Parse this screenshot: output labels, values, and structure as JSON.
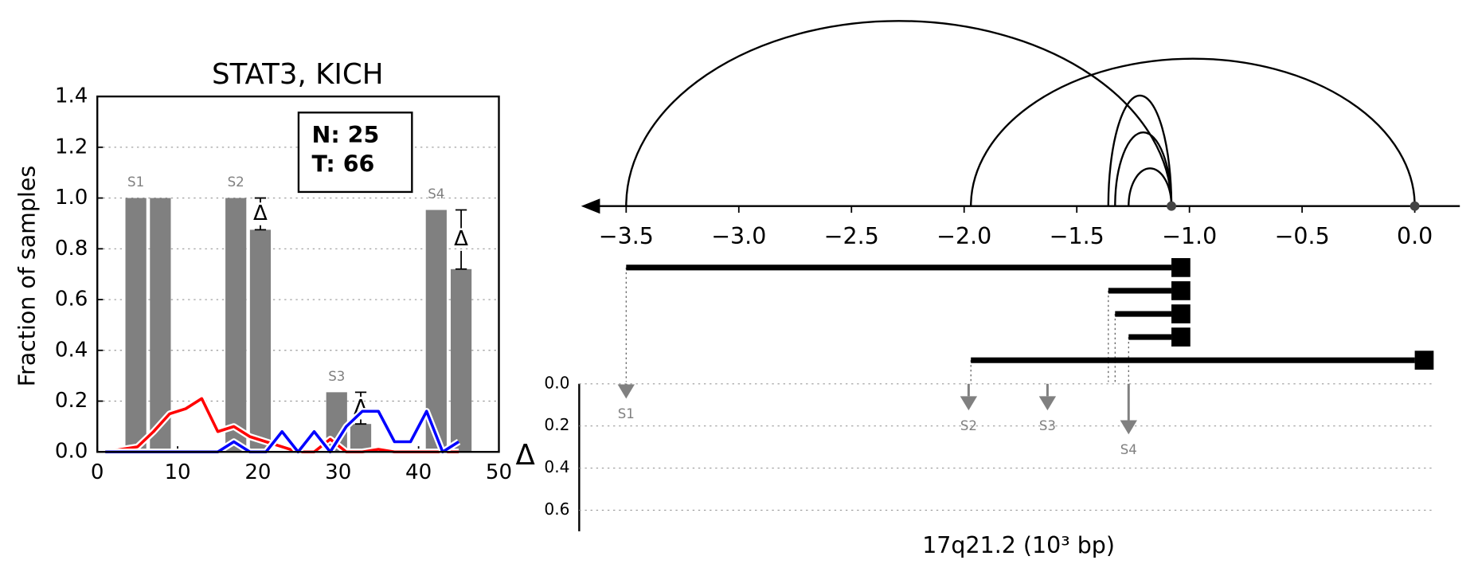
{
  "chart_data": [
    {
      "type": "bar",
      "title": "STAT3, KICH",
      "ylabel": "Fraction of samples",
      "xlim": [
        0,
        50
      ],
      "ylim": [
        0,
        1.4
      ],
      "xticks": [
        0,
        10,
        20,
        30,
        40,
        50
      ],
      "yticks": [
        {
          "value": 0,
          "label": "0.0"
        },
        {
          "value": 0.2,
          "label": "0.2"
        },
        {
          "value": 0.4,
          "label": "0.4"
        },
        {
          "value": 0.6,
          "label": "0.6"
        },
        {
          "value": 0.8,
          "label": "0.8"
        },
        {
          "value": 1,
          "label": "1.0"
        },
        {
          "value": 1.2,
          "label": "1.2"
        },
        {
          "value": 1.4,
          "label": "1.4"
        }
      ],
      "grid": true,
      "bar_color": "#808080",
      "bar_width": 2.6,
      "groups": [
        {
          "name": "S1",
          "x": [
            4.8,
            7.85
          ],
          "values": [
            1,
            1
          ]
        },
        {
          "name": "S2",
          "x": [
            17.25,
            20.3
          ],
          "values": [
            1,
            0.875
          ]
        },
        {
          "name": "S3",
          "x": [
            29.8,
            32.8
          ],
          "values": [
            0.235,
            0.11
          ]
        },
        {
          "name": "S4",
          "x": [
            42.2,
            45.3
          ],
          "values": [
            0.953,
            0.72
          ]
        }
      ],
      "delta_label": "Δ",
      "x": [
        1,
        3,
        5,
        7,
        9,
        11,
        13,
        15,
        17,
        19,
        21,
        23,
        25,
        27,
        29,
        31,
        33,
        35,
        37,
        39,
        41,
        43,
        45
      ],
      "series": [
        {
          "color": "#ff0000",
          "values": [
            0,
            0.01,
            0.02,
            0.08,
            0.15,
            0.17,
            0.21,
            0.08,
            0.1,
            0.06,
            0.04,
            0.02,
            0,
            0,
            0.05,
            0,
            0,
            0.01,
            0,
            0,
            0,
            0,
            0
          ]
        },
        {
          "color": "#0000ff",
          "values": [
            0,
            0,
            0,
            0,
            0,
            0,
            0,
            0,
            0.04,
            0,
            0,
            0.08,
            0,
            0.08,
            0,
            0.1,
            0.16,
            0.16,
            0.04,
            0.04,
            0.16,
            0,
            0.04
          ]
        }
      ],
      "legend": [
        "N: 25",
        "T: 66"
      ]
    },
    {
      "type": "arc",
      "xlabel": "17q21.2 (10³ bp)",
      "xlim": [
        -3.7,
        0.2
      ],
      "xticks": [
        {
          "value": -3.5,
          "label": "−3.5"
        },
        {
          "value": -3,
          "label": "−3.0"
        },
        {
          "value": -2.5,
          "label": "−2.5"
        },
        {
          "value": -2,
          "label": "−2.0"
        },
        {
          "value": -1.5,
          "label": "−1.5"
        },
        {
          "value": -1,
          "label": "−1.0"
        },
        {
          "value": -0.5,
          "label": "−0.5"
        },
        {
          "value": 0,
          "label": "0.0"
        }
      ],
      "points": [
        -1.08,
        0
      ],
      "arcs": [
        {
          "start": -3.5,
          "end": -1.08
        },
        {
          "start": -1.97,
          "end": 0
        },
        {
          "start": -1.36,
          "end": -1.08
        },
        {
          "start": -1.33,
          "end": -1.08
        },
        {
          "start": -1.27,
          "end": -1.08
        }
      ],
      "segments": [
        {
          "start": -3.5,
          "end": -1.08
        },
        {
          "start": -1.36,
          "end": -1.08
        },
        {
          "start": -1.33,
          "end": -1.08
        },
        {
          "start": -1.27,
          "end": -1.08
        },
        {
          "start": -1.97,
          "end": 0
        }
      ],
      "delta": {
        "ylabel": "Δ",
        "ylim": [
          0,
          0.7
        ],
        "yticks": [
          {
            "value": 0,
            "label": "0.0"
          },
          {
            "value": 0.2,
            "label": "0.2"
          },
          {
            "value": 0.4,
            "label": "0.4"
          },
          {
            "value": 0.6,
            "label": "0.6"
          }
        ],
        "color": "#808080",
        "markers": [
          {
            "name": "S1",
            "x": -3.5,
            "value": 0.07
          },
          {
            "name": "S2",
            "x": -1.98,
            "value": 0.126
          },
          {
            "name": "S3",
            "x": -1.63,
            "value": 0.126
          },
          {
            "name": "S4",
            "x": -1.27,
            "value": 0.24
          }
        ]
      }
    }
  ]
}
